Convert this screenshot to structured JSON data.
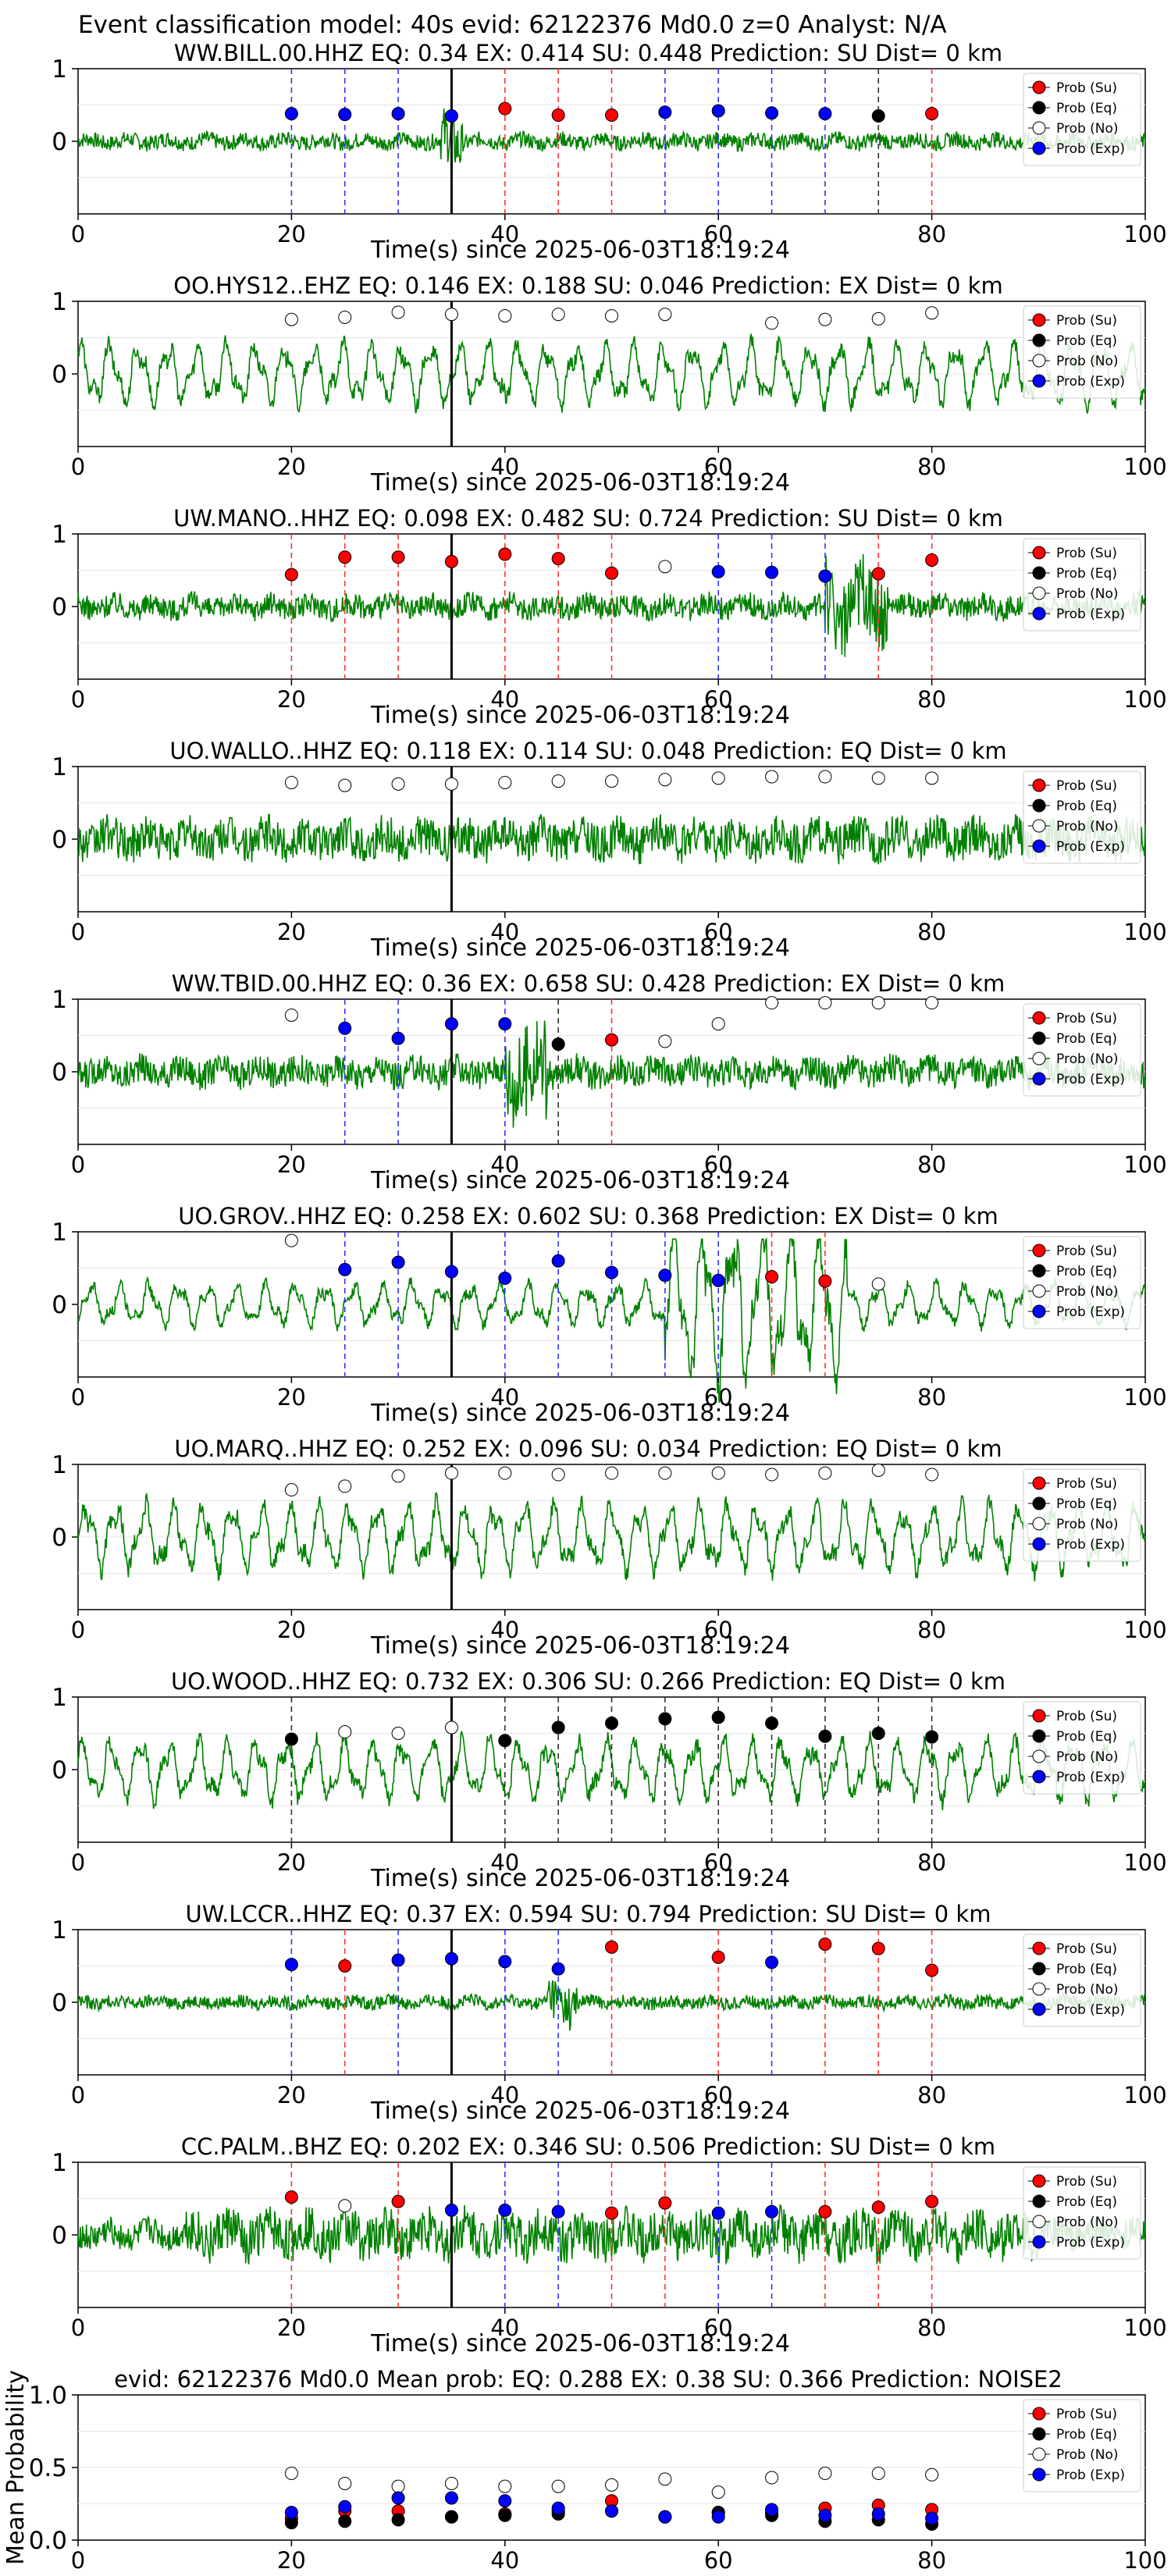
{
  "suptitle": "Event classification model: 40s evid: 62122376 Md0.0 z=0 Analyst: N/A",
  "colors": {
    "trace": "#008000",
    "su": "#ff0000",
    "eq": "#000000",
    "no": "#ffffff",
    "exp": "#0000ff",
    "su_line": "#ff3333",
    "eq_line": "#333333",
    "exp_line": "#3333ff",
    "origin_line": "#000000"
  },
  "legend": {
    "position": "top-right",
    "entries": [
      "Prob (Su)",
      "Prob (Eq)",
      "Prob (No)",
      "Prob (Exp)"
    ]
  },
  "chart_data": [
    {
      "type": "line",
      "title": "WW.BILL.00.HHZ   EQ: 0.34   EX: 0.414   SU: 0.448   Prediction: SU    Dist= 0 km",
      "xlabel": "Time(s) since 2025-06-03T18:19:24",
      "xlim": [
        0,
        100
      ],
      "ylim": [
        -1,
        1
      ],
      "xticks": [
        "0",
        "20",
        "40",
        "60",
        "80",
        "100"
      ],
      "yticks": [
        "1",
        "0"
      ],
      "origin_time": 35,
      "wave": {
        "style": "noisy",
        "burst": [
          34,
          36
        ],
        "amp": 0.12
      },
      "points": [
        {
          "x": 20,
          "y": 0.38,
          "c": "exp"
        },
        {
          "x": 25,
          "y": 0.37,
          "c": "exp"
        },
        {
          "x": 30,
          "y": 0.38,
          "c": "exp"
        },
        {
          "x": 35,
          "y": 0.35,
          "c": "exp"
        },
        {
          "x": 40,
          "y": 0.45,
          "c": "su"
        },
        {
          "x": 45,
          "y": 0.36,
          "c": "su"
        },
        {
          "x": 50,
          "y": 0.36,
          "c": "su"
        },
        {
          "x": 55,
          "y": 0.4,
          "c": "exp"
        },
        {
          "x": 60,
          "y": 0.42,
          "c": "exp"
        },
        {
          "x": 65,
          "y": 0.39,
          "c": "exp"
        },
        {
          "x": 70,
          "y": 0.38,
          "c": "exp"
        },
        {
          "x": 75,
          "y": 0.35,
          "c": "eq"
        },
        {
          "x": 80,
          "y": 0.38,
          "c": "su"
        }
      ]
    },
    {
      "type": "line",
      "title": "OO.HYS12..EHZ   EQ: 0.146   EX: 0.188   SU: 0.046   Prediction: EX    Dist= 0 km",
      "xlabel": "Time(s) since 2025-06-03T18:19:24",
      "xlim": [
        0,
        100
      ],
      "ylim": [
        -1,
        1
      ],
      "xticks": [
        "0",
        "20",
        "40",
        "60",
        "80",
        "100"
      ],
      "yticks": [
        "1",
        "0"
      ],
      "origin_time": 35,
      "wave": {
        "style": "oscillating",
        "amp": 0.5
      },
      "points": [
        {
          "x": 20,
          "y": 0.75,
          "c": "no"
        },
        {
          "x": 25,
          "y": 0.78,
          "c": "no"
        },
        {
          "x": 30,
          "y": 0.85,
          "c": "no"
        },
        {
          "x": 35,
          "y": 0.82,
          "c": "no"
        },
        {
          "x": 40,
          "y": 0.8,
          "c": "no"
        },
        {
          "x": 45,
          "y": 0.82,
          "c": "no"
        },
        {
          "x": 50,
          "y": 0.8,
          "c": "no"
        },
        {
          "x": 55,
          "y": 0.82,
          "c": "no"
        },
        {
          "x": 65,
          "y": 0.7,
          "c": "no"
        },
        {
          "x": 70,
          "y": 0.75,
          "c": "no"
        },
        {
          "x": 75,
          "y": 0.76,
          "c": "no"
        },
        {
          "x": 80,
          "y": 0.84,
          "c": "no"
        }
      ]
    },
    {
      "type": "line",
      "title": "UW.MANO..HHZ   EQ: 0.098   EX: 0.482   SU: 0.724   Prediction: SU    Dist= 0 km",
      "xlabel": "Time(s) since 2025-06-03T18:19:24",
      "xlim": [
        0,
        100
      ],
      "ylim": [
        -1,
        1
      ],
      "xticks": [
        "0",
        "20",
        "40",
        "60",
        "80",
        "100"
      ],
      "yticks": [
        "1",
        "0"
      ],
      "origin_time": 35,
      "wave": {
        "style": "noisy",
        "burst": [
          70,
          76
        ],
        "amp": 0.18
      },
      "points": [
        {
          "x": 20,
          "y": 0.44,
          "c": "su"
        },
        {
          "x": 25,
          "y": 0.68,
          "c": "su"
        },
        {
          "x": 30,
          "y": 0.68,
          "c": "su"
        },
        {
          "x": 35,
          "y": 0.62,
          "c": "su"
        },
        {
          "x": 40,
          "y": 0.72,
          "c": "su"
        },
        {
          "x": 45,
          "y": 0.66,
          "c": "su"
        },
        {
          "x": 50,
          "y": 0.46,
          "c": "su"
        },
        {
          "x": 55,
          "y": 0.55,
          "c": "no"
        },
        {
          "x": 60,
          "y": 0.48,
          "c": "exp"
        },
        {
          "x": 65,
          "y": 0.47,
          "c": "exp"
        },
        {
          "x": 70,
          "y": 0.42,
          "c": "exp"
        },
        {
          "x": 75,
          "y": 0.45,
          "c": "su"
        },
        {
          "x": 80,
          "y": 0.64,
          "c": "su"
        }
      ]
    },
    {
      "type": "line",
      "title": "UO.WALLO..HHZ   EQ: 0.118   EX: 0.114   SU: 0.048   Prediction: EQ    Dist= 0 km",
      "xlabel": "Time(s) since 2025-06-03T18:19:24",
      "xlim": [
        0,
        100
      ],
      "ylim": [
        -1,
        1
      ],
      "xticks": [
        "0",
        "20",
        "40",
        "60",
        "80",
        "100"
      ],
      "yticks": [
        "1",
        "0"
      ],
      "origin_time": 35,
      "wave": {
        "style": "noisy",
        "amp": 0.3
      },
      "points": [
        {
          "x": 20,
          "y": 0.78,
          "c": "no"
        },
        {
          "x": 25,
          "y": 0.74,
          "c": "no"
        },
        {
          "x": 30,
          "y": 0.76,
          "c": "no"
        },
        {
          "x": 35,
          "y": 0.76,
          "c": "no"
        },
        {
          "x": 40,
          "y": 0.78,
          "c": "no"
        },
        {
          "x": 45,
          "y": 0.8,
          "c": "no"
        },
        {
          "x": 50,
          "y": 0.8,
          "c": "no"
        },
        {
          "x": 55,
          "y": 0.82,
          "c": "no"
        },
        {
          "x": 60,
          "y": 0.84,
          "c": "no"
        },
        {
          "x": 65,
          "y": 0.86,
          "c": "no"
        },
        {
          "x": 70,
          "y": 0.86,
          "c": "no"
        },
        {
          "x": 75,
          "y": 0.84,
          "c": "no"
        },
        {
          "x": 80,
          "y": 0.84,
          "c": "no"
        }
      ]
    },
    {
      "type": "line",
      "title": "WW.TBID.00.HHZ   EQ: 0.36   EX: 0.658   SU: 0.428   Prediction: EX    Dist= 0 km",
      "xlabel": "Time(s) since 2025-06-03T18:19:24",
      "xlim": [
        0,
        100
      ],
      "ylim": [
        -1,
        1
      ],
      "xticks": [
        "0",
        "20",
        "40",
        "60",
        "80",
        "100"
      ],
      "yticks": [
        "1",
        "0"
      ],
      "origin_time": 35,
      "wave": {
        "style": "noisy",
        "burst": [
          40,
          44
        ],
        "amp": 0.22
      },
      "points": [
        {
          "x": 20,
          "y": 0.78,
          "c": "no"
        },
        {
          "x": 25,
          "y": 0.6,
          "c": "exp"
        },
        {
          "x": 30,
          "y": 0.46,
          "c": "exp"
        },
        {
          "x": 35,
          "y": 0.66,
          "c": "exp"
        },
        {
          "x": 40,
          "y": 0.66,
          "c": "exp"
        },
        {
          "x": 45,
          "y": 0.38,
          "c": "eq"
        },
        {
          "x": 50,
          "y": 0.44,
          "c": "su"
        },
        {
          "x": 55,
          "y": 0.42,
          "c": "no"
        },
        {
          "x": 60,
          "y": 0.66,
          "c": "no"
        },
        {
          "x": 65,
          "y": 0.95,
          "c": "no"
        },
        {
          "x": 70,
          "y": 0.95,
          "c": "no"
        },
        {
          "x": 75,
          "y": 0.95,
          "c": "no"
        },
        {
          "x": 80,
          "y": 0.95,
          "c": "no"
        }
      ]
    },
    {
      "type": "line",
      "title": "UO.GROV..HHZ   EQ: 0.258   EX: 0.602   SU: 0.368   Prediction: EX    Dist= 0 km",
      "xlabel": "Time(s) since 2025-06-03T18:19:24",
      "xlim": [
        0,
        100
      ],
      "ylim": [
        -1,
        1
      ],
      "xticks": [
        "0",
        "20",
        "40",
        "60",
        "80",
        "100"
      ],
      "yticks": [
        "1",
        "0"
      ],
      "origin_time": 35,
      "wave": {
        "style": "oscillating",
        "burst": [
          55,
          72
        ],
        "amp": 0.35
      },
      "points": [
        {
          "x": 20,
          "y": 0.88,
          "c": "no"
        },
        {
          "x": 25,
          "y": 0.48,
          "c": "exp"
        },
        {
          "x": 30,
          "y": 0.58,
          "c": "exp"
        },
        {
          "x": 35,
          "y": 0.45,
          "c": "exp"
        },
        {
          "x": 40,
          "y": 0.36,
          "c": "exp"
        },
        {
          "x": 45,
          "y": 0.6,
          "c": "exp"
        },
        {
          "x": 50,
          "y": 0.44,
          "c": "exp"
        },
        {
          "x": 55,
          "y": 0.4,
          "c": "exp"
        },
        {
          "x": 60,
          "y": 0.33,
          "c": "exp"
        },
        {
          "x": 65,
          "y": 0.38,
          "c": "su"
        },
        {
          "x": 70,
          "y": 0.32,
          "c": "su"
        },
        {
          "x": 75,
          "y": 0.28,
          "c": "no"
        }
      ]
    },
    {
      "type": "line",
      "title": "UO.MARQ..HHZ   EQ: 0.252   EX: 0.096   SU: 0.034   Prediction: EQ    Dist= 0 km",
      "xlabel": "Time(s) since 2025-06-03T18:19:24",
      "xlim": [
        0,
        100
      ],
      "ylim": [
        -1,
        1
      ],
      "xticks": [
        "0",
        "20",
        "40",
        "60",
        "80",
        "100"
      ],
      "yticks": [
        "1",
        "0"
      ],
      "origin_time": 35,
      "wave": {
        "style": "oscillating",
        "amp": 0.55
      },
      "points": [
        {
          "x": 20,
          "y": 0.65,
          "c": "no"
        },
        {
          "x": 25,
          "y": 0.7,
          "c": "no"
        },
        {
          "x": 30,
          "y": 0.84,
          "c": "no"
        },
        {
          "x": 35,
          "y": 0.88,
          "c": "no"
        },
        {
          "x": 40,
          "y": 0.88,
          "c": "no"
        },
        {
          "x": 45,
          "y": 0.86,
          "c": "no"
        },
        {
          "x": 50,
          "y": 0.88,
          "c": "no"
        },
        {
          "x": 55,
          "y": 0.88,
          "c": "no"
        },
        {
          "x": 60,
          "y": 0.88,
          "c": "no"
        },
        {
          "x": 65,
          "y": 0.86,
          "c": "no"
        },
        {
          "x": 70,
          "y": 0.88,
          "c": "no"
        },
        {
          "x": 75,
          "y": 0.92,
          "c": "no"
        },
        {
          "x": 80,
          "y": 0.86,
          "c": "no"
        }
      ]
    },
    {
      "type": "line",
      "title": "UO.WOOD..HHZ   EQ: 0.732   EX: 0.306   SU: 0.266   Prediction: EQ    Dist= 0 km",
      "xlabel": "Time(s) since 2025-06-03T18:19:24",
      "xlim": [
        0,
        100
      ],
      "ylim": [
        -1,
        1
      ],
      "xticks": [
        "0",
        "20",
        "40",
        "60",
        "80",
        "100"
      ],
      "yticks": [
        "1",
        "0"
      ],
      "origin_time": 35,
      "wave": {
        "style": "oscillating",
        "amp": 0.5
      },
      "points": [
        {
          "x": 20,
          "y": 0.42,
          "c": "eq"
        },
        {
          "x": 25,
          "y": 0.52,
          "c": "no"
        },
        {
          "x": 30,
          "y": 0.5,
          "c": "no"
        },
        {
          "x": 35,
          "y": 0.58,
          "c": "no"
        },
        {
          "x": 40,
          "y": 0.4,
          "c": "eq"
        },
        {
          "x": 45,
          "y": 0.58,
          "c": "eq"
        },
        {
          "x": 50,
          "y": 0.64,
          "c": "eq"
        },
        {
          "x": 55,
          "y": 0.7,
          "c": "eq"
        },
        {
          "x": 60,
          "y": 0.72,
          "c": "eq"
        },
        {
          "x": 65,
          "y": 0.64,
          "c": "eq"
        },
        {
          "x": 70,
          "y": 0.46,
          "c": "eq"
        },
        {
          "x": 75,
          "y": 0.5,
          "c": "eq"
        },
        {
          "x": 80,
          "y": 0.45,
          "c": "eq"
        }
      ]
    },
    {
      "type": "line",
      "title": "UW.LCCR..HHZ   EQ: 0.37   EX: 0.594   SU: 0.794   Prediction: SU    Dist= 0 km",
      "xlabel": "Time(s) since 2025-06-03T18:19:24",
      "xlim": [
        0,
        100
      ],
      "ylim": [
        -1,
        1
      ],
      "xticks": [
        "0",
        "20",
        "40",
        "60",
        "80",
        "100"
      ],
      "yticks": [
        "1",
        "0"
      ],
      "origin_time": 35,
      "wave": {
        "style": "noisy",
        "burst": [
          44,
          47
        ],
        "amp": 0.1
      },
      "points": [
        {
          "x": 20,
          "y": 0.52,
          "c": "exp"
        },
        {
          "x": 25,
          "y": 0.5,
          "c": "su"
        },
        {
          "x": 30,
          "y": 0.58,
          "c": "exp"
        },
        {
          "x": 35,
          "y": 0.6,
          "c": "exp"
        },
        {
          "x": 40,
          "y": 0.56,
          "c": "exp"
        },
        {
          "x": 45,
          "y": 0.46,
          "c": "exp"
        },
        {
          "x": 50,
          "y": 0.76,
          "c": "su"
        },
        {
          "x": 60,
          "y": 0.62,
          "c": "su"
        },
        {
          "x": 65,
          "y": 0.55,
          "c": "exp"
        },
        {
          "x": 70,
          "y": 0.8,
          "c": "su"
        },
        {
          "x": 75,
          "y": 0.74,
          "c": "su"
        },
        {
          "x": 80,
          "y": 0.44,
          "c": "su"
        }
      ]
    },
    {
      "type": "line",
      "title": "CC.PALM..BHZ   EQ: 0.202   EX: 0.346   SU: 0.506   Prediction: SU    Dist= 0 km",
      "xlabel": "Time(s) since 2025-06-03T18:19:24",
      "xlim": [
        0,
        100
      ],
      "ylim": [
        -1,
        1
      ],
      "xticks": [
        "0",
        "20",
        "40",
        "60",
        "80",
        "100"
      ],
      "yticks": [
        "1",
        "0"
      ],
      "origin_time": 35,
      "wave": {
        "style": "noisy",
        "burst": [
          10,
          90
        ],
        "amp": 0.22
      },
      "points": [
        {
          "x": 20,
          "y": 0.52,
          "c": "su"
        },
        {
          "x": 25,
          "y": 0.4,
          "c": "no"
        },
        {
          "x": 30,
          "y": 0.46,
          "c": "su"
        },
        {
          "x": 35,
          "y": 0.34,
          "c": "exp"
        },
        {
          "x": 40,
          "y": 0.34,
          "c": "exp"
        },
        {
          "x": 45,
          "y": 0.32,
          "c": "exp"
        },
        {
          "x": 50,
          "y": 0.3,
          "c": "su"
        },
        {
          "x": 55,
          "y": 0.44,
          "c": "su"
        },
        {
          "x": 60,
          "y": 0.3,
          "c": "exp"
        },
        {
          "x": 65,
          "y": 0.32,
          "c": "exp"
        },
        {
          "x": 70,
          "y": 0.32,
          "c": "su"
        },
        {
          "x": 75,
          "y": 0.38,
          "c": "su"
        },
        {
          "x": 80,
          "y": 0.46,
          "c": "su"
        }
      ]
    },
    {
      "type": "scatter",
      "title": "evid: 62122376  Md0.0   Mean prob:   EQ: 0.288   EX: 0.38   SU: 0.366   Prediction: NOISE2",
      "ylabel": "Mean Probability",
      "xlim": [
        0,
        100
      ],
      "ylim": [
        0,
        1
      ],
      "xticks": [
        "0",
        "20",
        "40",
        "60",
        "80",
        "100"
      ],
      "yticks": [
        "1.0",
        "0.5",
        "0.0"
      ],
      "grid": true,
      "series": [
        {
          "name": "Prob (Su)",
          "c": "su",
          "x": [
            20,
            25,
            30,
            35,
            40,
            45,
            50,
            55,
            60,
            65,
            70,
            75,
            80
          ],
          "y": [
            0.15,
            0.2,
            0.2,
            0.16,
            0.18,
            0.2,
            0.27,
            0.16,
            0.19,
            0.19,
            0.22,
            0.24,
            0.21
          ]
        },
        {
          "name": "Prob (Eq)",
          "c": "eq",
          "x": [
            20,
            25,
            30,
            35,
            40,
            45,
            50,
            55,
            60,
            65,
            70,
            75,
            80
          ],
          "y": [
            0.12,
            0.13,
            0.14,
            0.16,
            0.17,
            0.18,
            0.2,
            0.16,
            0.19,
            0.17,
            0.13,
            0.14,
            0.11
          ]
        },
        {
          "name": "Prob (No)",
          "c": "no",
          "x": [
            20,
            25,
            30,
            35,
            40,
            45,
            50,
            55,
            60,
            65,
            70,
            75,
            80
          ],
          "y": [
            0.46,
            0.39,
            0.37,
            0.39,
            0.37,
            0.37,
            0.38,
            0.42,
            0.33,
            0.43,
            0.46,
            0.46,
            0.45
          ]
        },
        {
          "name": "Prob (Exp)",
          "c": "exp",
          "x": [
            20,
            25,
            30,
            35,
            40,
            45,
            50,
            55,
            60,
            65,
            70,
            75,
            80
          ],
          "y": [
            0.19,
            0.23,
            0.29,
            0.29,
            0.27,
            0.22,
            0.2,
            0.16,
            0.16,
            0.21,
            0.17,
            0.18,
            0.15
          ]
        }
      ]
    }
  ]
}
